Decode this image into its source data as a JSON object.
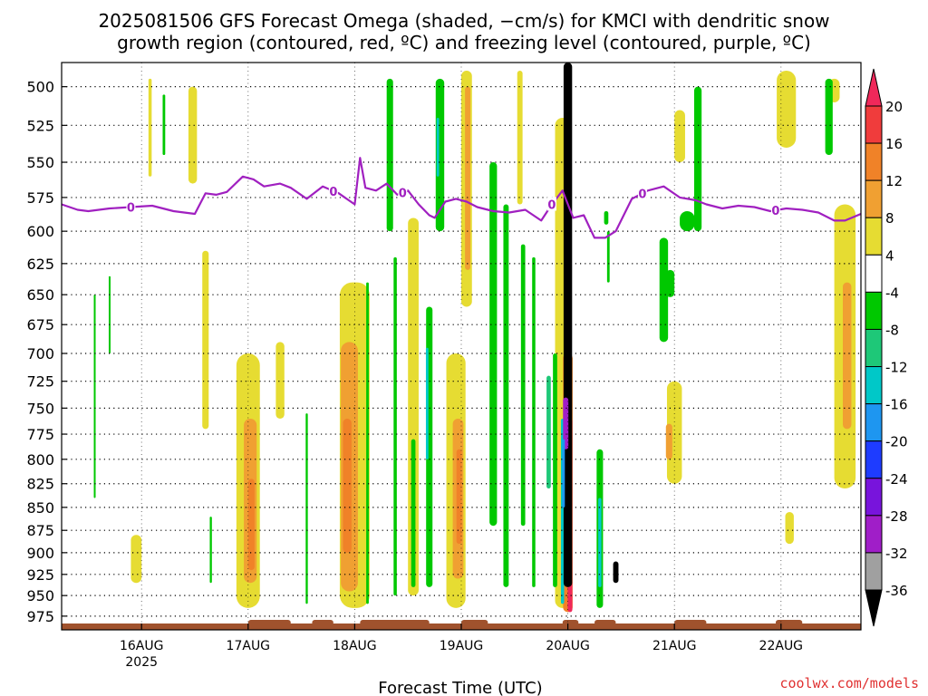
{
  "chart_data": {
    "type": "heatmap",
    "title_line1": "2025081506 GFS Forecast Omega (shaded, −cm/s) for KMCI with dendritic snow",
    "title_line2": "growth region (contoured, red, ºC) and freezing level (contoured, purple, ºC)",
    "xlabel": "Forecast Time (UTC)",
    "x_ticks": [
      "16AUG",
      "17AUG",
      "18AUG",
      "19AUG",
      "20AUG",
      "21AUG",
      "22AUG"
    ],
    "x_tick_times": [
      1,
      2,
      3,
      4,
      5,
      6,
      7
    ],
    "x_year_label": "2025",
    "xlim": [
      0.25,
      7.75
    ],
    "y_ticks": [
      500,
      525,
      550,
      575,
      600,
      625,
      650,
      675,
      700,
      725,
      750,
      775,
      800,
      825,
      850,
      875,
      900,
      925,
      950,
      975
    ],
    "ylim": [
      485,
      992
    ],
    "y_scale": "log-pressure",
    "grid": true,
    "colorbar": {
      "labels": [
        "20",
        "16",
        "12",
        "8",
        "4",
        "-4",
        "-8",
        "-12",
        "-16",
        "-20",
        "-24",
        "-28",
        "-32",
        "-36"
      ],
      "boundaries": [
        20,
        16,
        12,
        8,
        4,
        -4,
        -8,
        -12,
        -16,
        -20,
        -24,
        -28,
        -32,
        -36
      ],
      "colors": [
        "#f0285a",
        "#f03c3c",
        "#f08228",
        "#f0a032",
        "#e6dc32",
        "#ffffff",
        "#00c800",
        "#1ec878",
        "#00c8c8",
        "#1e96f0",
        "#1e3cff",
        "#7814dc",
        "#a01ec8",
        "#a0a0a0",
        "#000000"
      ]
    },
    "freezing_level": {
      "label": "0",
      "time": [
        0.25,
        0.4,
        0.5,
        0.7,
        0.9,
        1.1,
        1.3,
        1.5,
        1.6,
        1.7,
        1.8,
        1.95,
        2.05,
        2.15,
        2.3,
        2.4,
        2.55,
        2.7,
        2.85,
        3.0,
        3.05,
        3.1,
        3.2,
        3.3,
        3.4,
        3.5,
        3.6,
        3.7,
        3.75,
        3.85,
        3.95,
        4.05,
        4.15,
        4.3,
        4.45,
        4.6,
        4.75,
        4.85,
        4.95,
        5.05,
        5.15,
        5.25,
        5.35,
        5.45,
        5.6,
        5.75,
        5.9,
        6.05,
        6.2,
        6.3,
        6.45,
        6.6,
        6.75,
        6.9,
        7.05,
        7.2,
        7.35,
        7.5,
        7.6,
        7.75
      ],
      "pressure": [
        580,
        584,
        585,
        583,
        582,
        581,
        585,
        587,
        572,
        573,
        571,
        560,
        562,
        567,
        565,
        568,
        576,
        567,
        572,
        580,
        547,
        568,
        570,
        565,
        573,
        570,
        580,
        588,
        590,
        578,
        576,
        578,
        582,
        585,
        586,
        584,
        592,
        580,
        570,
        590,
        588,
        605,
        605,
        600,
        576,
        570,
        567,
        575,
        577,
        580,
        583,
        581,
        582,
        585,
        583,
        584,
        586,
        592,
        592,
        587
      ],
      "label_times": [
        0.9,
        2.8,
        3.45,
        4.85,
        5.7,
        6.95
      ]
    },
    "cells": [
      {
        "time": 0.95,
        "p": [
          880,
          935
        ],
        "hw": 0.05,
        "value": 6
      },
      {
        "time": 1.08,
        "p": [
          495,
          560
        ],
        "hw": 0.015,
        "value": 6
      },
      {
        "time": 1.48,
        "p": [
          500,
          565
        ],
        "hw": 0.04,
        "value": 6
      },
      {
        "time": 2.0,
        "p": [
          700,
          965
        ],
        "hw": 0.11,
        "value": 6
      },
      {
        "time": 2.02,
        "p": [
          760,
          935
        ],
        "hw": 0.06,
        "value": 10
      },
      {
        "time": 2.03,
        "p": [
          820,
          920
        ],
        "hw": 0.03,
        "value": 13
      },
      {
        "time": 1.6,
        "p": [
          615,
          770
        ],
        "hw": 0.03,
        "value": 6
      },
      {
        "time": 2.3,
        "p": [
          690,
          760
        ],
        "hw": 0.04,
        "value": 6
      },
      {
        "time": 3.0,
        "p": [
          640,
          965
        ],
        "hw": 0.14,
        "value": 6
      },
      {
        "time": 2.95,
        "p": [
          690,
          945
        ],
        "hw": 0.08,
        "value": 10
      },
      {
        "time": 2.93,
        "p": [
          760,
          900
        ],
        "hw": 0.04,
        "value": 13
      },
      {
        "time": 3.55,
        "p": [
          590,
          950
        ],
        "hw": 0.05,
        "value": 6
      },
      {
        "time": 3.95,
        "p": [
          700,
          965
        ],
        "hw": 0.09,
        "value": 6
      },
      {
        "time": 3.97,
        "p": [
          760,
          930
        ],
        "hw": 0.05,
        "value": 10
      },
      {
        "time": 3.98,
        "p": [
          790,
          890
        ],
        "hw": 0.025,
        "value": 13
      },
      {
        "time": 4.05,
        "p": [
          490,
          660
        ],
        "hw": 0.05,
        "value": 6
      },
      {
        "time": 4.06,
        "p": [
          500,
          630
        ],
        "hw": 0.025,
        "value": 10
      },
      {
        "time": 4.55,
        "p": [
          490,
          580
        ],
        "hw": 0.025,
        "value": 6
      },
      {
        "time": 4.95,
        "p": [
          520,
          965
        ],
        "hw": 0.07,
        "value": 6
      },
      {
        "time": 5.0,
        "p": [
          700,
          970
        ],
        "hw": 0.045,
        "value": 12
      },
      {
        "time": 5.02,
        "p": [
          760,
          970
        ],
        "hw": 0.022,
        "value": 20
      },
      {
        "time": 6.0,
        "p": [
          725,
          825
        ],
        "hw": 0.07,
        "value": 6
      },
      {
        "time": 5.95,
        "p": [
          765,
          800
        ],
        "hw": 0.03,
        "value": 10
      },
      {
        "time": 6.05,
        "p": [
          515,
          550
        ],
        "hw": 0.05,
        "value": 6
      },
      {
        "time": 7.08,
        "p": [
          855,
          890
        ],
        "hw": 0.04,
        "value": 6
      },
      {
        "time": 7.05,
        "p": [
          490,
          540
        ],
        "hw": 0.09,
        "value": 6
      },
      {
        "time": 7.5,
        "p": [
          495,
          510
        ],
        "hw": 0.05,
        "value": 6
      },
      {
        "time": 7.6,
        "p": [
          580,
          830
        ],
        "hw": 0.1,
        "value": 6
      },
      {
        "time": 7.62,
        "p": [
          640,
          770
        ],
        "hw": 0.04,
        "value": 10
      },
      {
        "time": 0.56,
        "p": [
          650,
          840
        ],
        "hw": 0.008,
        "value": -5
      },
      {
        "time": 0.7,
        "p": [
          635,
          700
        ],
        "hw": 0.008,
        "value": -5
      },
      {
        "time": 1.21,
        "p": [
          505,
          545
        ],
        "hw": 0.012,
        "value": -6
      },
      {
        "time": 1.65,
        "p": [
          860,
          935
        ],
        "hw": 0.01,
        "value": -6
      },
      {
        "time": 2.55,
        "p": [
          755,
          960
        ],
        "hw": 0.01,
        "value": -6
      },
      {
        "time": 3.33,
        "p": [
          495,
          600
        ],
        "hw": 0.03,
        "value": -6
      },
      {
        "time": 3.12,
        "p": [
          640,
          960
        ],
        "hw": 0.012,
        "value": -6
      },
      {
        "time": 3.38,
        "p": [
          620,
          950
        ],
        "hw": 0.015,
        "value": -6
      },
      {
        "time": 3.7,
        "p": [
          660,
          940
        ],
        "hw": 0.03,
        "value": -6
      },
      {
        "time": 3.68,
        "p": [
          695,
          800
        ],
        "hw": 0.012,
        "value": -14
      },
      {
        "time": 3.8,
        "p": [
          495,
          600
        ],
        "hw": 0.04,
        "value": -6
      },
      {
        "time": 3.78,
        "p": [
          520,
          560
        ],
        "hw": 0.012,
        "value": -14
      },
      {
        "time": 3.55,
        "p": [
          780,
          940
        ],
        "hw": 0.02,
        "value": -6
      },
      {
        "time": 4.3,
        "p": [
          550,
          870
        ],
        "hw": 0.035,
        "value": -6
      },
      {
        "time": 4.42,
        "p": [
          580,
          940
        ],
        "hw": 0.025,
        "value": -6
      },
      {
        "time": 4.58,
        "p": [
          610,
          870
        ],
        "hw": 0.02,
        "value": -6
      },
      {
        "time": 4.68,
        "p": [
          620,
          940
        ],
        "hw": 0.015,
        "value": -6
      },
      {
        "time": 4.88,
        "p": [
          700,
          940
        ],
        "hw": 0.02,
        "value": -6
      },
      {
        "time": 4.82,
        "p": [
          720,
          830
        ],
        "hw": 0.02,
        "value": -10
      },
      {
        "time": 4.95,
        "p": [
          760,
          960
        ],
        "hw": 0.015,
        "value": -14
      },
      {
        "time": 5.3,
        "p": [
          790,
          965
        ],
        "hw": 0.03,
        "value": -6
      },
      {
        "time": 5.3,
        "p": [
          840,
          940
        ],
        "hw": 0.015,
        "value": -14
      },
      {
        "time": 5.36,
        "p": [
          585,
          595
        ],
        "hw": 0.02,
        "value": -6
      },
      {
        "time": 5.38,
        "p": [
          600,
          640
        ],
        "hw": 0.012,
        "value": -6
      },
      {
        "time": 5.45,
        "p": [
          910,
          935
        ],
        "hw": 0.025,
        "value": -40
      },
      {
        "time": 5.9,
        "p": [
          605,
          690
        ],
        "hw": 0.04,
        "value": -6
      },
      {
        "time": 5.96,
        "p": [
          630,
          652
        ],
        "hw": 0.04,
        "value": -6
      },
      {
        "time": 6.22,
        "p": [
          500,
          600
        ],
        "hw": 0.035,
        "value": -6
      },
      {
        "time": 6.12,
        "p": [
          585,
          600
        ],
        "hw": 0.07,
        "value": -6
      },
      {
        "time": 7.45,
        "p": [
          495,
          545
        ],
        "hw": 0.035,
        "value": -6
      },
      {
        "time": 5.0,
        "p": [
          485,
          940
        ],
        "hw": 0.04,
        "value": -40
      },
      {
        "time": 4.98,
        "p": [
          740,
          790
        ],
        "hw": 0.025,
        "value": -30
      },
      {
        "time": 4.96,
        "p": [
          780,
          850
        ],
        "hw": 0.012,
        "value": -18
      }
    ]
  },
  "credit": "coolwx.com/models"
}
